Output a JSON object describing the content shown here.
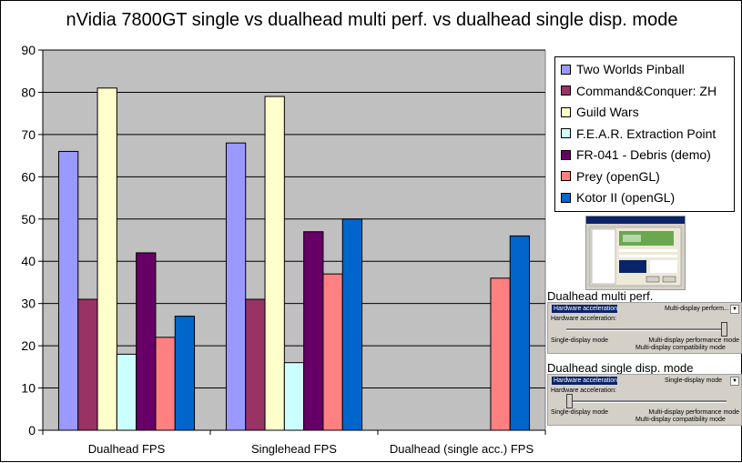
{
  "chart_data": {
    "type": "bar",
    "title": "nVidia 7800GT single vs dualhead multi perf. vs dualhead single disp. mode",
    "xlabel": "",
    "ylabel": "",
    "ylim": [
      0,
      90
    ],
    "ytick_step": 10,
    "grid": true,
    "legend_position": "right",
    "categories": [
      "Dualhead FPS",
      "Singlehead FPS",
      "Dualhead (single acc.) FPS"
    ],
    "series": [
      {
        "name": "Two Worlds Pinball",
        "color": "#9999ff",
        "values": [
          66,
          68,
          null
        ]
      },
      {
        "name": "Command&Conquer: ZH",
        "color": "#993366",
        "values": [
          31,
          31,
          null
        ]
      },
      {
        "name": "Guild Wars",
        "color": "#ffffcc",
        "values": [
          81,
          79,
          null
        ]
      },
      {
        "name": "F.E.A.R. Extraction Point",
        "color": "#ccffff",
        "values": [
          18,
          16,
          null
        ]
      },
      {
        "name": "FR-041 - Debris (demo)",
        "color": "#660066",
        "values": [
          42,
          47,
          null
        ]
      },
      {
        "name": "Prey (openGL)",
        "color": "#ff8080",
        "values": [
          22,
          37,
          36
        ]
      },
      {
        "name": "Kotor II (openGL)",
        "color": "#0066cc",
        "values": [
          27,
          50,
          46
        ]
      }
    ],
    "plot_background": "#c0c0c0"
  },
  "panels": [
    {
      "title": "Dualhead multi perf.",
      "selected": "Hardware acceleration",
      "mode": "Multi-display perform...",
      "dropdown": "▼",
      "hw_label": "Hardware acceleration:",
      "slider_fraction": 1,
      "left_label": "Single-display mode",
      "right_label": "Multi-display performance mode",
      "center_label": "Multi-display compatibility mode"
    },
    {
      "title": "Dualhead single disp. mode",
      "selected": "Hardware acceleration",
      "mode": "Single-display mode",
      "dropdown": "▼",
      "hw_label": "Hardware acceleration:",
      "slider_fraction": 0,
      "left_label": "Single-display mode",
      "right_label": "Multi-display performance mode",
      "center_label": "Multi-display compatibility mode"
    }
  ]
}
